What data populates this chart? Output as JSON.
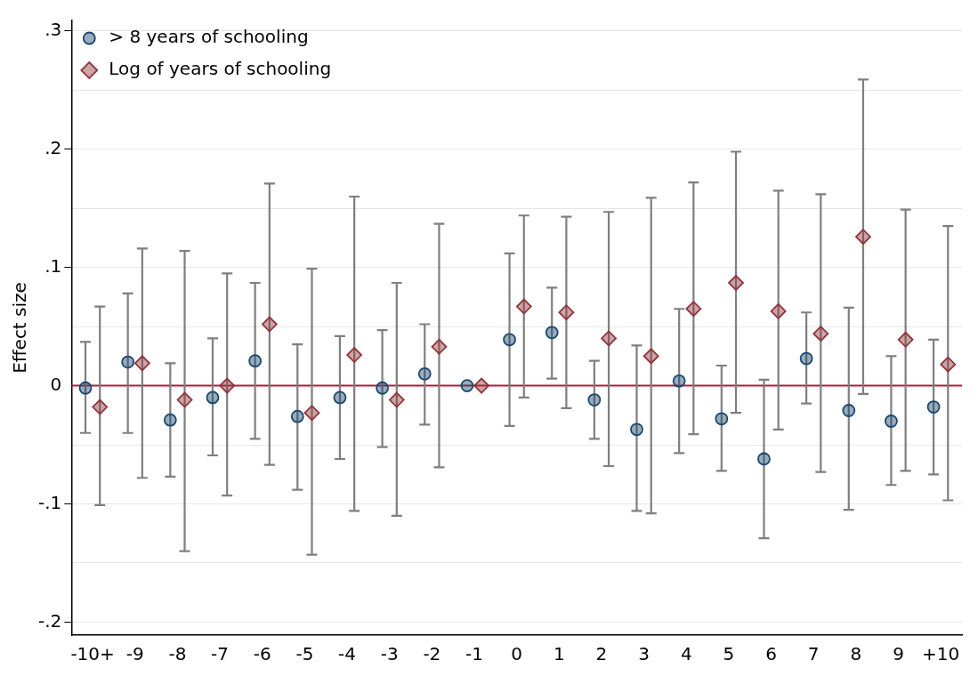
{
  "chart_data": {
    "type": "scatter",
    "ylabel": "Effect size",
    "categories": [
      "-10+",
      "-9",
      "-8",
      "-7",
      "-6",
      "-5",
      "-4",
      "-3",
      "-2",
      "-1",
      "0",
      "1",
      "2",
      "3",
      "4",
      "5",
      "6",
      "7",
      "8",
      "9",
      "+10"
    ],
    "ylim": [
      -0.211,
      0.309
    ],
    "yticks": [
      {
        "value": -0.2,
        "label": "-.2"
      },
      {
        "value": -0.15,
        "label": null
      },
      {
        "value": -0.1,
        "label": "-.1"
      },
      {
        "value": -0.05,
        "label": null
      },
      0,
      {
        "value": 0.05,
        "label": null
      },
      {
        "value": 0.1,
        "label": ".1"
      },
      {
        "value": 0.15,
        "label": null
      },
      {
        "value": 0.2,
        "label": ".2"
      },
      {
        "value": 0.25,
        "label": null
      },
      {
        "value": 0.3,
        "label": ".3"
      }
    ],
    "grid": "y",
    "legend": "top left",
    "ref_lines": [
      {
        "axis": "y",
        "value": 0,
        "color": "#b01c3c"
      }
    ],
    "series": [
      {
        "name": "> 8 years of schooling",
        "color": "#1a476f",
        "marker": "circle",
        "values": [
          -0.002,
          0.02,
          -0.029,
          -0.01,
          0.021,
          -0.026,
          -0.01,
          -0.002,
          0.01,
          0,
          0.039,
          0.045,
          -0.012,
          -0.037,
          0.004,
          -0.028,
          -0.062,
          0.023,
          -0.021,
          -0.03,
          -0.018
        ],
        "errors": [
          [
            -0.04,
            0.037
          ],
          [
            -0.04,
            0.078
          ],
          [
            -0.077,
            0.019
          ],
          [
            -0.059,
            0.04
          ],
          [
            -0.045,
            0.087
          ],
          [
            -0.088,
            0.035
          ],
          [
            -0.062,
            0.042
          ],
          [
            -0.052,
            0.047
          ],
          [
            -0.033,
            0.052
          ],
          null,
          [
            -0.034,
            0.112
          ],
          [
            0.006,
            0.083
          ],
          [
            -0.045,
            0.021
          ],
          [
            -0.106,
            0.034
          ],
          [
            -0.057,
            0.065
          ],
          [
            -0.072,
            0.017
          ],
          [
            -0.129,
            0.005
          ],
          [
            -0.015,
            0.062
          ],
          [
            -0.105,
            0.066
          ],
          [
            -0.084,
            0.025
          ],
          [
            -0.075,
            0.039
          ]
        ]
      },
      {
        "name": "Log of years of schooling",
        "color": "#90353b",
        "marker": "diamond",
        "values": [
          -0.018,
          0.019,
          -0.012,
          0,
          0.052,
          -0.023,
          0.026,
          -0.012,
          0.033,
          0,
          0.067,
          0.062,
          0.04,
          0.025,
          0.065,
          0.087,
          0.063,
          0.044,
          0.126,
          0.039,
          0.018
        ],
        "errors": [
          [
            -0.101,
            0.067
          ],
          [
            -0.078,
            0.116
          ],
          [
            -0.14,
            0.114
          ],
          [
            -0.093,
            0.095
          ],
          [
            -0.067,
            0.171
          ],
          [
            -0.143,
            0.099
          ],
          [
            -0.106,
            0.16
          ],
          [
            -0.11,
            0.087
          ],
          [
            -0.069,
            0.137
          ],
          null,
          [
            -0.01,
            0.144
          ],
          [
            -0.019,
            0.143
          ],
          [
            -0.068,
            0.147
          ],
          [
            -0.108,
            0.159
          ],
          [
            -0.041,
            0.172
          ],
          [
            -0.023,
            0.198
          ],
          [
            -0.037,
            0.165
          ],
          [
            -0.073,
            0.162
          ],
          [
            -0.007,
            0.259
          ],
          [
            -0.072,
            0.149
          ],
          [
            -0.097,
            0.135
          ]
        ]
      }
    ]
  }
}
